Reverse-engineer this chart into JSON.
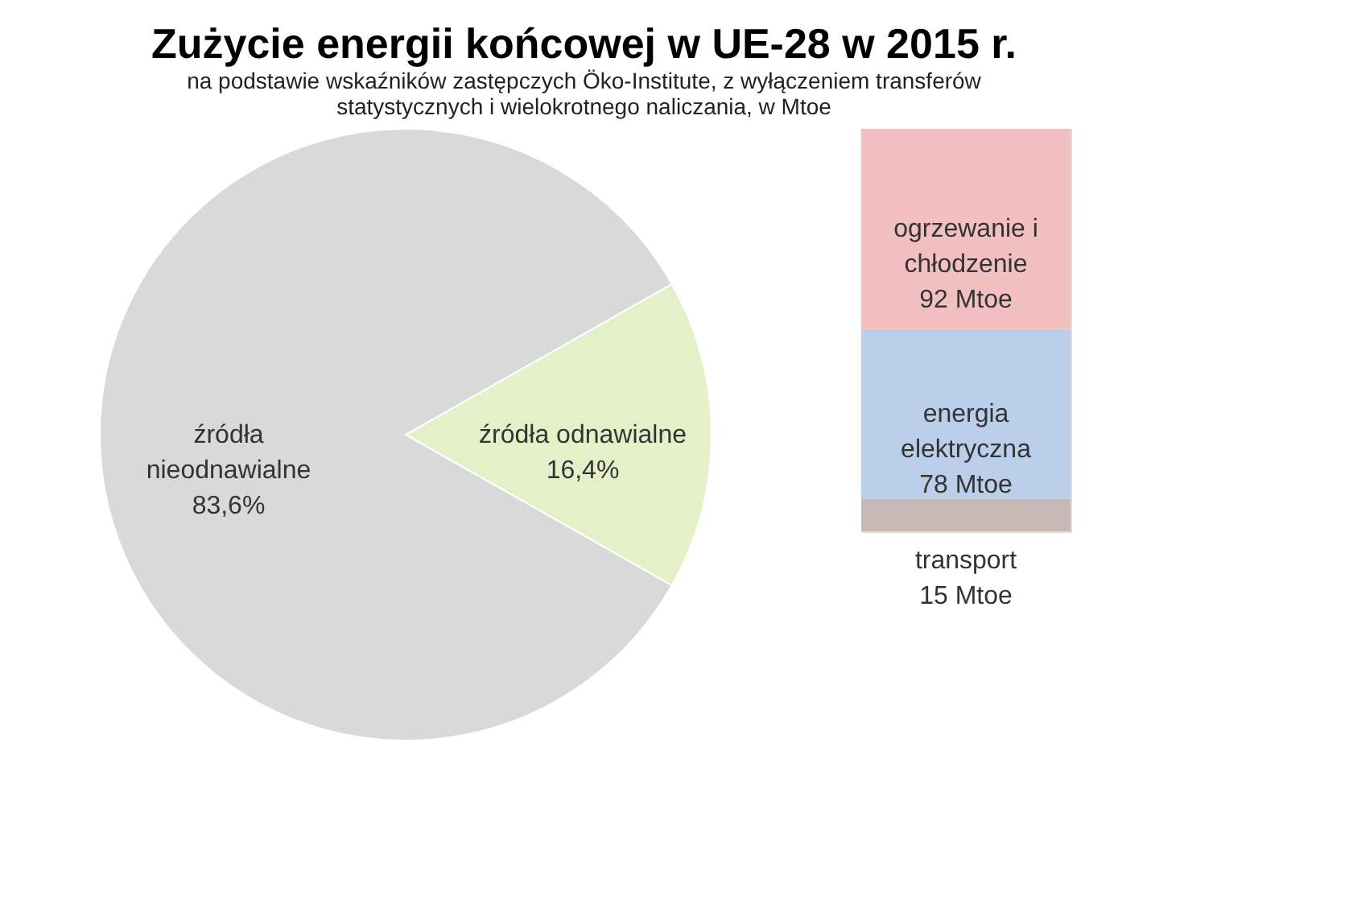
{
  "chart_data": [
    {
      "type": "pie",
      "title": "Zużycie energii końcowej w UE-28 w 2015 r.",
      "subtitle": "na podstawie wskaźników zastępczych Öko-Institute, z wyłączeniem  transferów statystycznych i wielokrotnego naliczania, w  Mtoe",
      "categories": [
        "źródła odnawialne",
        "źródła nieodnawialne"
      ],
      "values": [
        16.4,
        83.6
      ],
      "value_labels": [
        "16,4%",
        "83,6%"
      ],
      "colors": [
        "#e4f0c8",
        "#d9d9d9"
      ],
      "legend": false
    },
    {
      "type": "bar",
      "stacked": true,
      "categories": [
        null
      ],
      "legend": false,
      "series": [
        {
          "name": "transport",
          "color": "#c8b8b4",
          "values": [
            15
          ],
          "value_labels": [
            "15 Mtoe"
          ]
        },
        {
          "name": "energia elektryczna",
          "color": "#bccfea",
          "values": [
            78
          ],
          "value_labels": [
            "78 Mtoe"
          ]
        },
        {
          "name": "ogrzewanie i chłodzenie",
          "color": "#f2c0c0",
          "values": [
            92
          ],
          "value_labels": [
            "92 Mtoe"
          ]
        }
      ]
    }
  ]
}
